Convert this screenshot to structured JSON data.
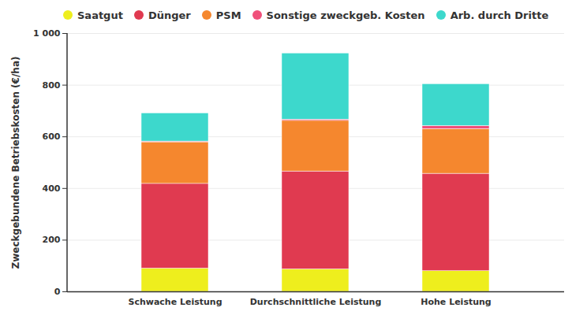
{
  "chart_data": {
    "type": "bar",
    "stacked": true,
    "grid": true,
    "legend": "top",
    "y_label": "Zweckgebundene Betriebskosten (€/ha)",
    "categories": [
      "Schwache Leistung",
      "Durchschnittliche Leistung",
      "Hohe Leistung"
    ],
    "series": [
      {
        "name": "Saatgut",
        "color": "#eeee1d",
        "values": [
          90,
          87,
          80
        ]
      },
      {
        "name": "Dünger",
        "color": "#e03a50",
        "values": [
          328,
          379,
          377
        ]
      },
      {
        "name": "PSM",
        "color": "#f5872e",
        "values": [
          161,
          196,
          173
        ]
      },
      {
        "name": "Sonstige zweckgeb. Kosten",
        "color": "#f0507a",
        "values": [
          3,
          5,
          12
        ]
      },
      {
        "name": "Arb. durch Dritte",
        "color": "#3dd8cc",
        "values": [
          109,
          256,
          162
        ]
      }
    ],
    "ylim": [
      0,
      1000
    ],
    "yticks": [
      0,
      200,
      400,
      600,
      800,
      {
        "value": 1000,
        "label": "1 000"
      }
    ]
  }
}
